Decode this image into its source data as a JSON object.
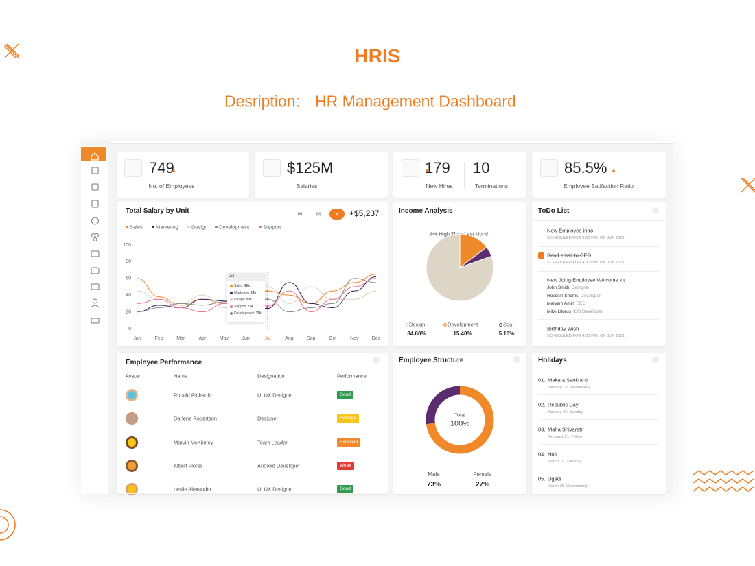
{
  "header": {
    "title": "HRIS",
    "description_label": "Desription:",
    "description": "HR Management Dashboard"
  },
  "stats": [
    {
      "value": "749",
      "label": "No. of Employees"
    },
    {
      "value": "$125M",
      "label": "Salaries"
    },
    {
      "value": "179",
      "label": "New Hires"
    },
    {
      "value": "10",
      "label": "Terminations"
    },
    {
      "value": "85.5%",
      "label": "Employee Satifaction Ratio"
    }
  ],
  "chart_data": [
    {
      "type": "line",
      "title": "Total Salary by Unit",
      "toggles": [
        "W",
        "M",
        "Y"
      ],
      "active_toggle": "Y",
      "total": "+$5,237",
      "categories": [
        "Jan",
        "Feb",
        "Mar",
        "Apr",
        "May",
        "Jun",
        "Jul",
        "Aug",
        "Sep",
        "Oct",
        "Nov",
        "Dec"
      ],
      "series": [
        {
          "name": "Sales",
          "color": "#f0892a",
          "values": [
            60,
            38,
            28,
            35,
            30,
            30,
            45,
            40,
            30,
            45,
            55,
            65
          ]
        },
        {
          "name": "Marketing",
          "color": "#3d1f5c",
          "values": [
            20,
            28,
            25,
            35,
            33,
            30,
            24,
            55,
            30,
            25,
            45,
            62
          ]
        },
        {
          "name": "Design",
          "color": "#ddd2c0",
          "values": [
            45,
            35,
            30,
            40,
            25,
            20,
            50,
            30,
            50,
            35,
            35,
            45
          ]
        },
        {
          "name": "Development",
          "color": "#8a8a8a",
          "values": [
            20,
            25,
            30,
            28,
            32,
            38,
            35,
            20,
            25,
            30,
            60,
            55
          ]
        },
        {
          "name": "Support",
          "color": "#f06e8a",
          "values": [
            30,
            35,
            25,
            20,
            30,
            35,
            27,
            45,
            20,
            35,
            50,
            60
          ]
        }
      ],
      "ylim": [
        0,
        100
      ],
      "yticks": [
        0,
        20,
        40,
        60,
        80,
        100
      ],
      "grid": false,
      "tooltip": {
        "title": "Jul",
        "items": [
          {
            "name": "Sales",
            "value": "45k"
          },
          {
            "name": "Marketing",
            "value": "24k"
          },
          {
            "name": "Design",
            "value": "50k"
          },
          {
            "name": "Support",
            "value": "27k"
          },
          {
            "name": "Development",
            "value": "35k"
          }
        ]
      }
    },
    {
      "type": "pie",
      "title": "Income Analysis",
      "subtitle": "8% High Then  Last Month",
      "categories": [
        "Design",
        "Development",
        "Sea"
      ],
      "values": [
        84.6,
        15.4,
        5.1
      ],
      "value_labels": [
        "84.60%",
        "15.40%",
        "5.10%"
      ],
      "colors": [
        "#ddd5c5",
        "#f0892a",
        "#5b2d6e"
      ]
    },
    {
      "type": "donut",
      "title": "Employee Structure",
      "center_label": "Total",
      "center_value": "100%",
      "categories": [
        "Male",
        "Female"
      ],
      "values": [
        73,
        27
      ],
      "value_labels": [
        "73%",
        "27%"
      ],
      "colors": [
        "#f0892a",
        "#5b2d6e"
      ]
    }
  ],
  "todo": {
    "title": "ToDo List",
    "items": [
      {
        "title": "New Employee intro",
        "schedule": "SCHEDULED FOR 3:00 P.M. ON JUN 2021",
        "done": false
      },
      {
        "title": "Send email to CEO",
        "schedule": "SCHEDULED FOR 4:30 P.M. ON JUN 2021",
        "done": true
      },
      {
        "title": "New Joing Employee Welcome kit",
        "done": false,
        "people": [
          {
            "name": "John Smith",
            "role": "Designer"
          },
          {
            "name": "Hossein Shams",
            "role": "Developer"
          },
          {
            "name": "Maryam Amiri",
            "role": "SEO"
          },
          {
            "name": "Mike Litorus",
            "role": "IOS Developer"
          }
        ]
      },
      {
        "title": "Birthday Wish",
        "schedule": "SCHEDULED FOR 4:30 P.M. ON JUN 2021",
        "done": false
      }
    ]
  },
  "performance": {
    "title": "Employee Performance",
    "columns": [
      "Avatar",
      "Name",
      "Designation",
      "Performance"
    ],
    "rows": [
      {
        "name": "Ronald Richards",
        "designation": "UI UX Designer",
        "performance": "Good",
        "color": "#2e9d4f"
      },
      {
        "name": "Darlene Robertson",
        "designation": "Designer",
        "performance": "Average",
        "color": "#f5c518"
      },
      {
        "name": "Marvin McKinney",
        "designation": "Team Leader",
        "performance": "Excellent",
        "color": "#f0892a"
      },
      {
        "name": "Albert Flores",
        "designation": "Android Developer",
        "performance": "Weak",
        "color": "#e53935"
      },
      {
        "name": "Leslie Alexander",
        "designation": "UI UX Designer",
        "performance": "Good",
        "color": "#2e9d4f"
      }
    ]
  },
  "holidays": {
    "title": "Holidays",
    "items": [
      {
        "number": "01.",
        "name": "Makara Sankranti",
        "date": "January 15, Wednesday"
      },
      {
        "number": "02.",
        "name": "Republic Day",
        "date": "January 26, Sunday"
      },
      {
        "number": "03.",
        "name": "Maha Shivaratri",
        "date": "February 21, Friday"
      },
      {
        "number": "04.",
        "name": "Holi",
        "date": "March 10, Tuesday"
      },
      {
        "number": "05.",
        "name": "Ugadi",
        "date": "March 25, Wednesday"
      }
    ]
  }
}
